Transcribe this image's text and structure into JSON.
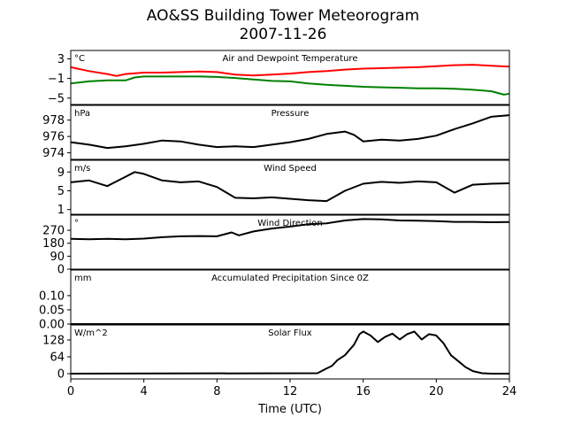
{
  "chart_data": {
    "type": "line",
    "title": "AO&SS Building Tower Meteorogram",
    "subtitle": "2007-11-26",
    "xlabel": "Time (UTC)",
    "xlim": [
      0,
      24
    ],
    "xticks": [
      0,
      4,
      8,
      12,
      16,
      20,
      24
    ],
    "panels": [
      {
        "title": "Air and Dewpoint Temperature",
        "unit": "°C",
        "ylim": [
          -6.3,
          4.7
        ],
        "yticks": [
          3,
          -1,
          -5
        ],
        "ytick_labels": [
          "3",
          "−1",
          "−5"
        ],
        "series": [
          {
            "color": "#ff0000",
            "x": [
              0,
              1,
              2,
              2.5,
              3,
              4,
              5,
              6,
              7,
              8,
              9,
              10,
              11,
              12,
              13,
              14,
              15,
              16,
              17,
              18,
              19,
              20,
              21,
              22,
              23,
              24
            ],
            "y": [
              1.3,
              0.5,
              -0.1,
              -0.5,
              -0.1,
              0.2,
              0.2,
              0.3,
              0.4,
              0.3,
              -0.2,
              -0.4,
              -0.2,
              0.0,
              0.3,
              0.5,
              0.8,
              1.0,
              1.1,
              1.2,
              1.3,
              1.5,
              1.7,
              1.8,
              1.6,
              1.4
            ]
          },
          {
            "color": "#008000",
            "x": [
              0,
              1,
              2,
              3,
              3.5,
              4,
              5,
              6,
              7,
              8,
              9,
              10,
              11,
              12,
              13,
              14,
              15,
              16,
              17,
              18,
              19,
              20,
              21,
              22,
              23,
              23.7,
              24
            ],
            "y": [
              -2.0,
              -1.6,
              -1.4,
              -1.4,
              -0.8,
              -0.6,
              -0.6,
              -0.6,
              -0.6,
              -0.7,
              -0.9,
              -1.2,
              -1.5,
              -1.6,
              -2.0,
              -2.3,
              -2.5,
              -2.7,
              -2.8,
              -2.9,
              -3.0,
              -3.0,
              -3.1,
              -3.3,
              -3.6,
              -4.3,
              -4.1
            ]
          }
        ]
      },
      {
        "title": "Pressure",
        "unit": "hPa",
        "ylim": [
          973.2,
          979.8
        ],
        "yticks": [
          978,
          976,
          974
        ],
        "series": [
          {
            "color": "#000000",
            "x": [
              0,
              1,
              2,
              3,
              4,
              5,
              6,
              7,
              8,
              9,
              10,
              11,
              12,
              13,
              14,
              15,
              15.5,
              16,
              17,
              18,
              19,
              20,
              21,
              22,
              23,
              24
            ],
            "y": [
              975.3,
              975.0,
              974.6,
              974.8,
              975.1,
              975.5,
              975.4,
              975.0,
              974.7,
              974.8,
              974.7,
              975.0,
              975.3,
              975.7,
              976.3,
              976.6,
              976.2,
              975.4,
              975.6,
              975.5,
              975.7,
              976.1,
              976.9,
              977.6,
              978.4,
              978.6
            ]
          }
        ]
      },
      {
        "title": "Wind Speed",
        "unit": "m/s",
        "ylim": [
          0,
          11.5
        ],
        "yticks": [
          9,
          5,
          1
        ],
        "series": [
          {
            "color": "#000000",
            "x": [
              0,
              1,
              2,
              3,
              3.5,
              4,
              5,
              6,
              7,
              8,
              9,
              10,
              11,
              12,
              13,
              14,
              15,
              16,
              17,
              18,
              19,
              20,
              21,
              22,
              23,
              24
            ],
            "y": [
              6.8,
              7.2,
              6.0,
              8.0,
              9.0,
              8.6,
              7.2,
              6.8,
              7.0,
              5.8,
              3.5,
              3.4,
              3.6,
              3.3,
              3.0,
              2.8,
              5.0,
              6.5,
              6.9,
              6.7,
              7.0,
              6.8,
              4.6,
              6.3,
              6.5,
              6.6
            ]
          }
        ]
      },
      {
        "title": "Wind Direction",
        "unit": "°",
        "ylim": [
          0,
          375
        ],
        "yticks": [
          270,
          180,
          90,
          0
        ],
        "series": [
          {
            "color": "#000000",
            "x": [
              0,
              1,
              2,
              3,
              4,
              5,
              6,
              7,
              8,
              8.8,
              9.2,
              10,
              11,
              12,
              13,
              14,
              15,
              16,
              17,
              18,
              19,
              20,
              21,
              22,
              23,
              24
            ],
            "y": [
              210,
              208,
              210,
              208,
              212,
              222,
              228,
              230,
              228,
              255,
              235,
              262,
              282,
              296,
              312,
              318,
              338,
              348,
              346,
              338,
              337,
              333,
              328,
              328,
              326,
              327
            ]
          }
        ]
      },
      {
        "title": "Accumulated Precipitation Since 0Z",
        "unit": "mm",
        "ylim": [
          0,
          0.19
        ],
        "yticks": [
          0.1,
          0.05,
          0.0
        ],
        "ytick_labels": [
          "0.10",
          "0.05",
          "0.00"
        ],
        "series": [
          {
            "color": "#000000",
            "x": [
              0,
              24
            ],
            "y": [
              0,
              0
            ]
          }
        ]
      },
      {
        "title": "Solar Flux",
        "unit": "W/m^2",
        "ylim": [
          -20,
          185
        ],
        "yticks": [
          128,
          64,
          0
        ],
        "series": [
          {
            "color": "#000000",
            "x": [
              0,
              13.5,
              14,
              14.3,
              14.6,
              15,
              15.5,
              15.8,
              16,
              16.4,
              16.8,
              17.2,
              17.6,
              18,
              18.4,
              18.8,
              19.2,
              19.6,
              20,
              20.4,
              20.8,
              21.2,
              21.6,
              22,
              22.5,
              23,
              24
            ],
            "y": [
              0,
              2,
              20,
              30,
              52,
              70,
              110,
              150,
              160,
              145,
              120,
              140,
              152,
              130,
              150,
              160,
              130,
              150,
              145,
              115,
              70,
              48,
              25,
              10,
              2,
              0,
              0
            ]
          }
        ]
      }
    ]
  }
}
